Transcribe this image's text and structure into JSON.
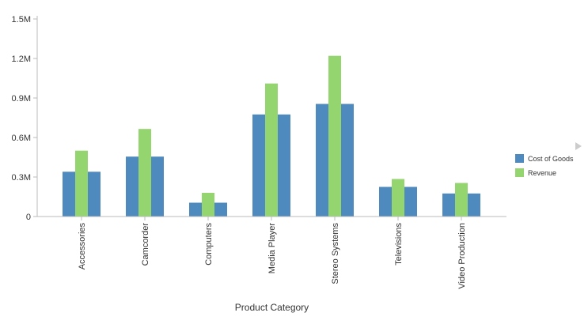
{
  "chart_data": {
    "type": "bar",
    "title": "",
    "xlabel": "Product Category",
    "ylabel": "",
    "categories": [
      "Accessories",
      "Camcorder",
      "Computers",
      "Media Player",
      "Stereo Systems",
      "Televisions",
      "Video Production"
    ],
    "series": [
      {
        "name": "Cost of Goods",
        "color": "#4f8abf",
        "values": [
          340000,
          455000,
          105000,
          775000,
          855000,
          225000,
          175000
        ]
      },
      {
        "name": "Revenue",
        "color": "#94d56f",
        "values": [
          500000,
          665000,
          180000,
          1010000,
          1220000,
          285000,
          255000
        ]
      }
    ],
    "ylim": [
      0,
      1500000
    ],
    "yticks": [
      {
        "value": 0,
        "label": "0"
      },
      {
        "value": 300000,
        "label": "0.3M"
      },
      {
        "value": 600000,
        "label": "0.6M"
      },
      {
        "value": 900000,
        "label": "0.9M"
      },
      {
        "value": 1200000,
        "label": "1.2M"
      },
      {
        "value": 1500000,
        "label": "1.5M"
      }
    ],
    "grid": false,
    "legend_position": "right",
    "legend_more_icon": "triangle-right-icon"
  }
}
